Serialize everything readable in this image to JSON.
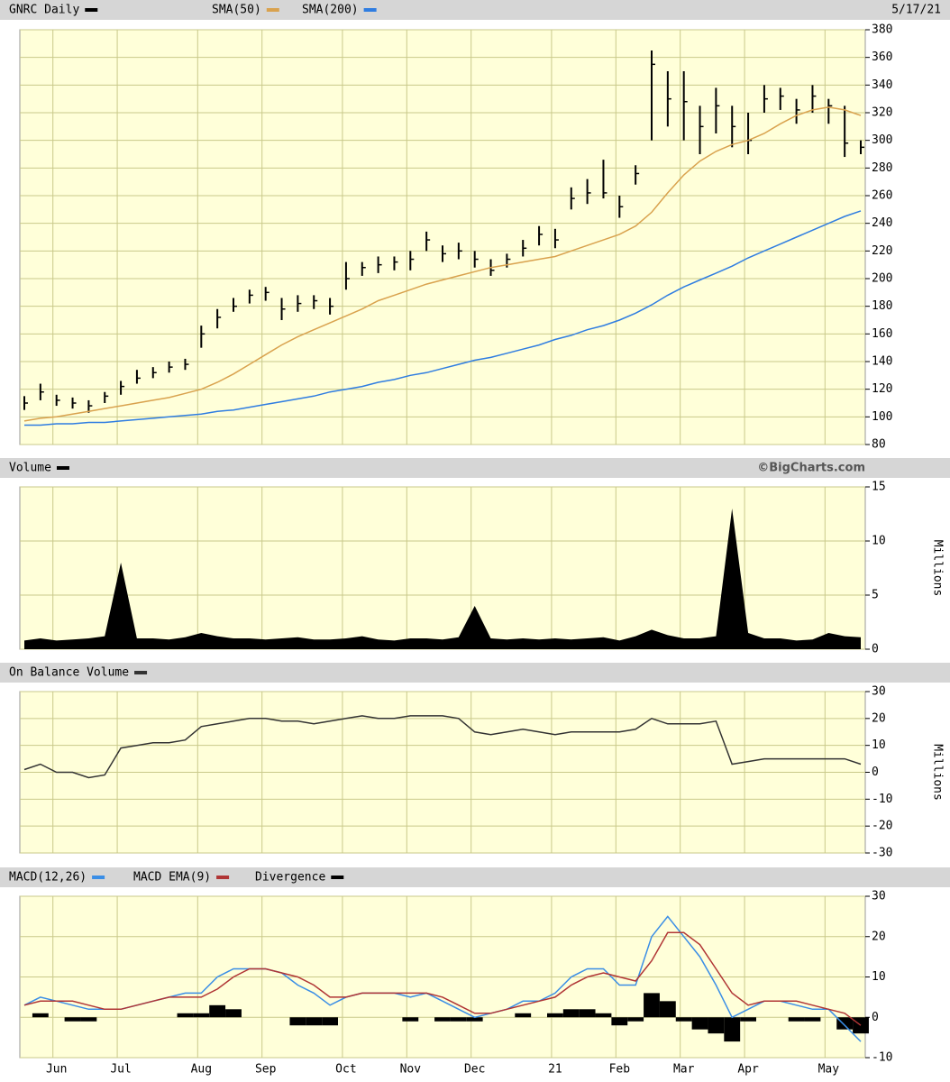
{
  "chart_data": [
    {
      "type": "hlc",
      "date": "5/17/21",
      "ylim": [
        80,
        380
      ],
      "yticks": [
        80,
        100,
        120,
        140,
        160,
        180,
        200,
        220,
        240,
        260,
        280,
        300,
        320,
        340,
        360,
        380
      ],
      "grid": true,
      "series": [
        {
          "name": "GNRC Daily",
          "color": "#000000",
          "values": [
            110,
            118,
            112,
            110,
            108,
            115,
            122,
            128,
            132,
            136,
            138,
            160,
            172,
            180,
            188,
            190,
            178,
            182,
            184,
            180,
            200,
            208,
            210,
            212,
            214,
            228,
            218,
            220,
            214,
            206,
            214,
            222,
            232,
            228,
            258,
            262,
            262,
            252,
            276,
            355,
            330,
            328,
            310,
            325,
            310,
            300,
            330,
            332,
            322,
            332,
            325,
            298,
            295
          ],
          "high": [
            115,
            124,
            116,
            114,
            112,
            118,
            126,
            134,
            136,
            140,
            142,
            166,
            178,
            186,
            192,
            194,
            186,
            188,
            188,
            186,
            212,
            212,
            216,
            216,
            220,
            234,
            224,
            226,
            220,
            214,
            218,
            228,
            238,
            236,
            266,
            272,
            286,
            260,
            282,
            365,
            350,
            350,
            325,
            338,
            325,
            320,
            340,
            338,
            330,
            340,
            330,
            325,
            300
          ],
          "low": [
            105,
            112,
            108,
            106,
            103,
            110,
            116,
            124,
            128,
            132,
            134,
            150,
            164,
            176,
            182,
            184,
            170,
            176,
            178,
            174,
            192,
            202,
            204,
            206,
            206,
            220,
            212,
            214,
            208,
            202,
            208,
            216,
            224,
            222,
            250,
            254,
            258,
            244,
            268,
            300,
            310,
            300,
            290,
            305,
            295,
            290,
            320,
            322,
            312,
            320,
            312,
            288,
            290
          ]
        },
        {
          "name": "SMA(50)",
          "color": "#d9a24e",
          "style": "line",
          "values": [
            97,
            99,
            100,
            102,
            104,
            106,
            108,
            110,
            112,
            114,
            117,
            120,
            125,
            131,
            138,
            145,
            152,
            158,
            163,
            168,
            173,
            178,
            184,
            188,
            192,
            196,
            199,
            202,
            205,
            208,
            210,
            212,
            214,
            216,
            220,
            224,
            228,
            232,
            238,
            248,
            262,
            275,
            285,
            292,
            297,
            300,
            305,
            312,
            318,
            322,
            324,
            322,
            318
          ]
        },
        {
          "name": "SMA(200)",
          "color": "#2f7de1",
          "style": "line",
          "values": [
            94,
            94,
            95,
            95,
            96,
            96,
            97,
            98,
            99,
            100,
            101,
            102,
            104,
            105,
            107,
            109,
            111,
            113,
            115,
            118,
            120,
            122,
            125,
            127,
            130,
            132,
            135,
            138,
            141,
            143,
            146,
            149,
            152,
            156,
            159,
            163,
            166,
            170,
            175,
            181,
            188,
            194,
            199,
            204,
            209,
            215,
            220,
            225,
            230,
            235,
            240,
            245,
            249
          ]
        }
      ]
    },
    {
      "type": "area",
      "ylabel": "Millions",
      "credit": "©BigCharts.com",
      "ylim": [
        0,
        15
      ],
      "yticks": [
        0,
        5,
        10,
        15
      ],
      "grid": true,
      "series": [
        {
          "name": "Volume",
          "color": "#000000",
          "values": [
            0.8,
            1,
            0.8,
            0.9,
            1,
            1.2,
            8,
            1,
            1,
            0.9,
            1.1,
            1.5,
            1.2,
            1,
            1,
            0.9,
            1,
            1.1,
            0.9,
            0.9,
            1,
            1.2,
            0.9,
            0.8,
            1,
            1,
            0.9,
            1.1,
            4,
            1,
            0.9,
            1,
            0.9,
            1,
            0.9,
            1,
            1.1,
            0.8,
            1.2,
            1.8,
            1.3,
            1,
            1,
            1.2,
            13,
            1.5,
            1,
            1,
            0.8,
            0.9,
            1.5,
            1.2,
            1.1
          ]
        }
      ]
    },
    {
      "type": "line",
      "ylabel": "Millions",
      "ylim": [
        -30,
        30
      ],
      "yticks": [
        -30,
        -20,
        -10,
        0,
        10,
        20,
        30
      ],
      "grid": true,
      "series": [
        {
          "name": "On Balance Volume",
          "color": "#333333",
          "values": [
            1,
            3,
            0,
            0,
            -2,
            -1,
            9,
            10,
            11,
            11,
            12,
            17,
            18,
            19,
            20,
            20,
            19,
            19,
            18,
            19,
            20,
            21,
            20,
            20,
            21,
            21,
            21,
            20,
            15,
            14,
            15,
            16,
            15,
            14,
            15,
            15,
            15,
            15,
            16,
            20,
            18,
            18,
            18,
            19,
            3,
            4,
            5,
            5,
            5,
            5,
            5,
            5,
            3
          ]
        }
      ]
    },
    {
      "type": "line",
      "ylim": [
        -10,
        30
      ],
      "yticks": [
        -10,
        0,
        10,
        20,
        30
      ],
      "grid": true,
      "categories": [
        null,
        null,
        "Jun",
        null,
        null,
        null,
        "Jul",
        null,
        null,
        null,
        null,
        "Aug",
        null,
        null,
        null,
        "Sep",
        null,
        null,
        null,
        null,
        "Oct",
        null,
        null,
        null,
        "Nov",
        null,
        null,
        null,
        "Dec",
        null,
        null,
        null,
        null,
        "21",
        null,
        null,
        null,
        "Feb",
        null,
        null,
        null,
        "Mar",
        null,
        null,
        null,
        "Apr",
        null,
        null,
        null,
        null,
        "May",
        null,
        null
      ],
      "series": [
        {
          "name": "MACD(12,26)",
          "color": "#3a8ee6",
          "style": "line",
          "values": [
            3,
            5,
            4,
            3,
            2,
            2,
            2,
            3,
            4,
            5,
            6,
            6,
            10,
            12,
            12,
            12,
            11,
            8,
            6,
            3,
            5,
            6,
            6,
            6,
            5,
            6,
            4,
            2,
            0,
            1,
            2,
            4,
            4,
            6,
            10,
            12,
            12,
            8,
            8,
            20,
            25,
            20,
            15,
            8,
            0,
            2,
            4,
            4,
            3,
            2,
            2,
            -2,
            -6
          ]
        },
        {
          "name": "MACD EMA(9)",
          "color": "#b03535",
          "style": "line",
          "values": [
            3,
            4,
            4,
            4,
            3,
            2,
            2,
            3,
            4,
            5,
            5,
            5,
            7,
            10,
            12,
            12,
            11,
            10,
            8,
            5,
            5,
            6,
            6,
            6,
            6,
            6,
            5,
            3,
            1,
            1,
            2,
            3,
            4,
            5,
            8,
            10,
            11,
            10,
            9,
            14,
            21,
            21,
            18,
            12,
            6,
            3,
            4,
            4,
            4,
            3,
            2,
            1,
            -2
          ]
        },
        {
          "name": "Divergence",
          "color": "#000000",
          "style": "bar",
          "values": [
            0,
            1,
            0,
            -1,
            -1,
            0,
            0,
            0,
            0,
            0,
            1,
            1,
            3,
            2,
            0,
            0,
            0,
            -2,
            -2,
            -2,
            0,
            0,
            0,
            0,
            -1,
            0,
            -1,
            -1,
            -1,
            0,
            0,
            1,
            0,
            1,
            2,
            2,
            1,
            -2,
            -1,
            6,
            4,
            -1,
            -3,
            -4,
            -6,
            -1,
            0,
            0,
            -1,
            -1,
            0,
            -3,
            -4
          ]
        }
      ]
    }
  ]
}
